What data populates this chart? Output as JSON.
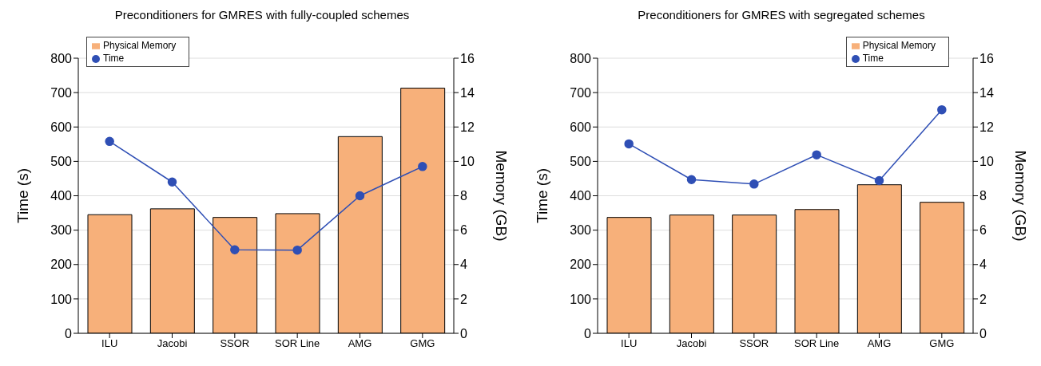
{
  "chart_data": [
    {
      "type": "bar",
      "title": "Preconditioners for GMRES with fully-coupled schemes",
      "categories": [
        "ILU",
        "Jacobi",
        "SSOR",
        "SOR Line",
        "AMG",
        "GMG"
      ],
      "ylabel": "Time (s)",
      "y2label": "Memory (GB)",
      "ylim": [
        0,
        800
      ],
      "yticks": [
        0,
        100,
        200,
        300,
        400,
        500,
        600,
        700,
        800
      ],
      "y2lim": [
        0,
        16
      ],
      "y2ticks": [
        0,
        2,
        4,
        6,
        8,
        10,
        12,
        14,
        16
      ],
      "grid": "y",
      "legend": "top left",
      "marker": "circle",
      "series": [
        {
          "name": "Time",
          "type": "line",
          "color": "#2f4fb5",
          "values": [
            558,
            440,
            243,
            242,
            400,
            485
          ]
        },
        {
          "name": "Physical Memory",
          "axis": "y2",
          "color": "#f7b07a",
          "values": [
            6.9,
            7.24,
            6.74,
            6.96,
            11.44,
            14.26
          ]
        }
      ]
    },
    {
      "type": "bar",
      "title": "Preconditioners for GMRES with segregated schemes",
      "categories": [
        "ILU",
        "Jacobi",
        "SSOR",
        "SOR Line",
        "AMG",
        "GMG"
      ],
      "ylabel": "Time (s)",
      "y2label": "Memory (GB)",
      "ylim": [
        0,
        800
      ],
      "yticks": [
        0,
        100,
        200,
        300,
        400,
        500,
        600,
        700,
        800
      ],
      "y2lim": [
        0,
        16
      ],
      "y2ticks": [
        0,
        2,
        4,
        6,
        8,
        10,
        12,
        14,
        16
      ],
      "grid": "y",
      "legend": "top right",
      "marker": "circle",
      "series": [
        {
          "name": "Time",
          "type": "line",
          "color": "#2f4fb5",
          "values": [
            551,
            447,
            434,
            519,
            444,
            650
          ]
        },
        {
          "name": "Physical Memory",
          "axis": "y2",
          "color": "#f7b07a",
          "values": [
            6.74,
            6.88,
            6.88,
            7.2,
            8.64,
            7.62
          ]
        }
      ]
    }
  ]
}
